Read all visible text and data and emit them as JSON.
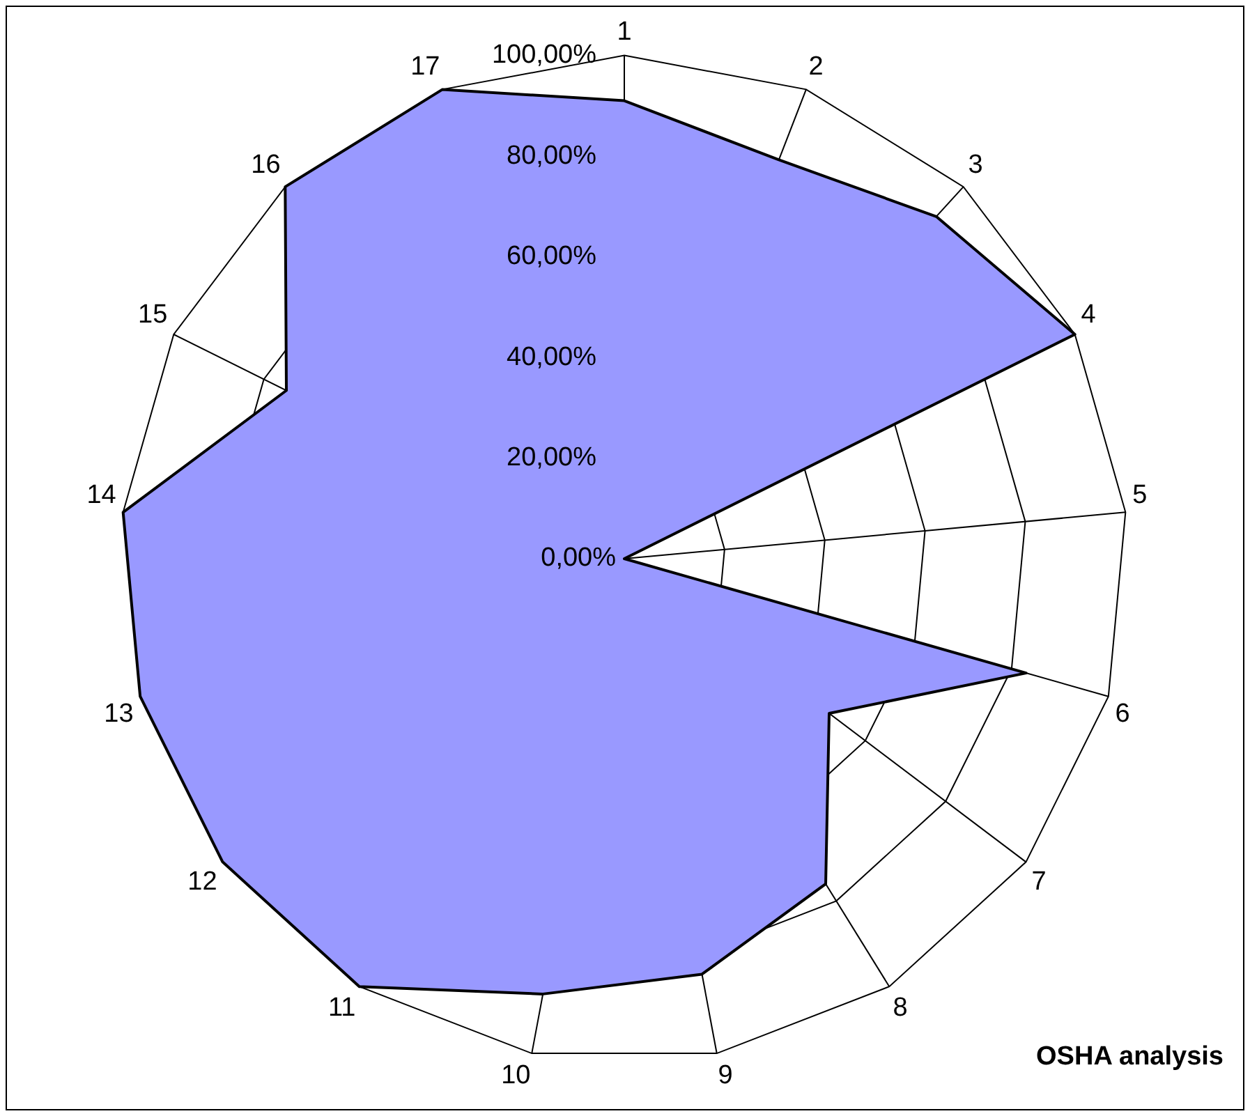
{
  "chart_data": {
    "type": "radar",
    "categories": [
      "1",
      "2",
      "3",
      "4",
      "5",
      "6",
      "7",
      "8",
      "9",
      "10",
      "11",
      "12",
      "13",
      "14",
      "15",
      "16",
      "17"
    ],
    "series": [
      {
        "color": "#9999ff",
        "values": [
          91,
          85,
          92,
          100,
          0,
          83,
          51,
          76,
          84,
          88,
          100,
          100,
          100,
          100,
          75,
          100,
          100
        ]
      }
    ],
    "ylim": [
      0,
      100
    ],
    "yticks": [
      {
        "value": 0,
        "label": "0,00%"
      },
      {
        "value": 20,
        "label": "20,00%"
      },
      {
        "value": 40,
        "label": "40,00%"
      },
      {
        "value": 60,
        "label": "60,00%"
      },
      {
        "value": 80,
        "label": "80,00%"
      },
      {
        "value": 100,
        "label": "100,00%"
      }
    ],
    "grid": true,
    "legend": false,
    "marker": "none",
    "annotations": [
      "OSHA analysis"
    ]
  }
}
